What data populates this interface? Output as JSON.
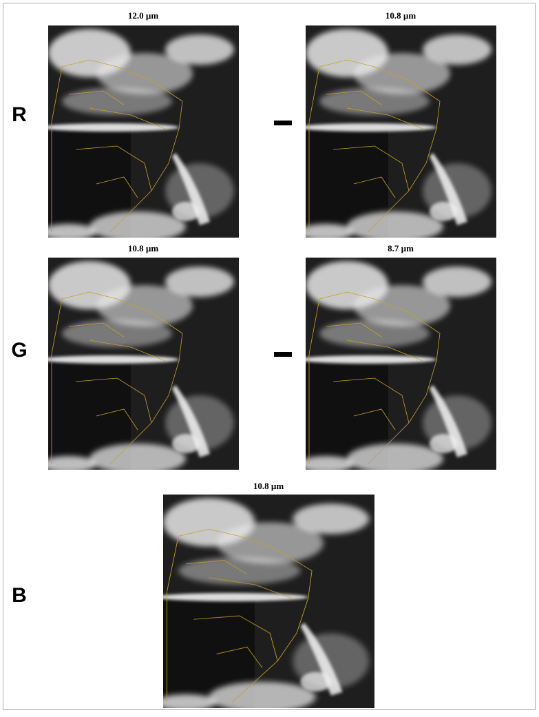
{
  "rows": [
    {
      "channel": "R",
      "left_title": "12.0 µm",
      "right_title": "10.8 µm"
    },
    {
      "channel": "G",
      "left_title": "10.8 µm",
      "right_title": "8.7 µm"
    },
    {
      "channel": "B",
      "title": "10.8 µm"
    }
  ]
}
